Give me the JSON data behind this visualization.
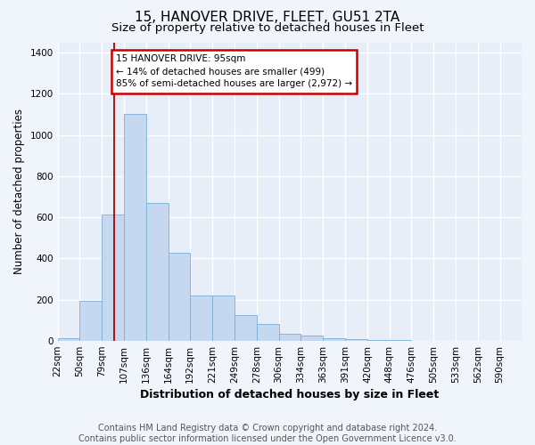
{
  "title": "15, HANOVER DRIVE, FLEET, GU51 2TA",
  "subtitle": "Size of property relative to detached houses in Fleet",
  "xlabel": "Distribution of detached houses by size in Fleet",
  "ylabel": "Number of detached properties",
  "categories": [
    "22sqm",
    "50sqm",
    "79sqm",
    "107sqm",
    "136sqm",
    "164sqm",
    "192sqm",
    "221sqm",
    "249sqm",
    "278sqm",
    "306sqm",
    "334sqm",
    "363sqm",
    "391sqm",
    "420sqm",
    "448sqm",
    "476sqm",
    "505sqm",
    "533sqm",
    "562sqm",
    "590sqm"
  ],
  "values": [
    15,
    195,
    615,
    1100,
    670,
    430,
    220,
    220,
    125,
    83,
    37,
    27,
    15,
    10,
    5,
    5,
    2,
    1,
    1,
    0,
    0
  ],
  "bar_color": "#c5d8f0",
  "bar_edge_color": "#7aafd4",
  "vline_x": 95,
  "annotation_label": "15 HANOVER DRIVE: 95sqm",
  "annotation_text1": "← 14% of detached houses are smaller (499)",
  "annotation_text2": "85% of semi-detached houses are larger (2,972) →",
  "annotation_box_color": "#ffffff",
  "annotation_box_edge": "#cc0000",
  "vertical_line_color": "#aa0000",
  "ylim": [
    0,
    1450
  ],
  "yticks": [
    0,
    200,
    400,
    600,
    800,
    1000,
    1200,
    1400
  ],
  "bg_color": "#e8eef8",
  "fig_bg_color": "#f0f4fb",
  "grid_color": "#ffffff",
  "footer_text": "Contains HM Land Registry data © Crown copyright and database right 2024.\nContains public sector information licensed under the Open Government Licence v3.0.",
  "title_fontsize": 11,
  "subtitle_fontsize": 9.5,
  "xlabel_fontsize": 9,
  "ylabel_fontsize": 8.5,
  "tick_fontsize": 7.5,
  "footer_fontsize": 7
}
